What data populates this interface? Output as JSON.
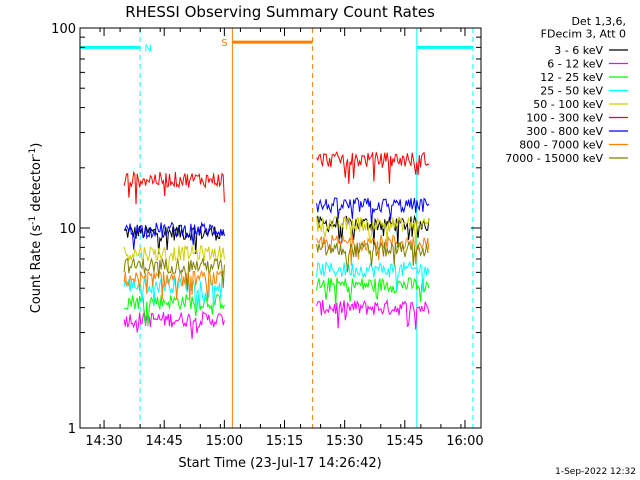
{
  "chart_data": {
    "type": "line",
    "title": "RHESSI Observing Summary Count Rates",
    "xlabel": "Start Time (23-Jul-17 14:26:42)",
    "ylabel_main": "Count Rate (s",
    "ylabel_sup1": "-1",
    "ylabel_mid": " detector",
    "ylabel_sup2": "-1",
    "ylabel_end": ")",
    "yscale": "log",
    "ylim": [
      1,
      100
    ],
    "xlim_minutes": [
      "14:24",
      "16:04"
    ],
    "x_ticks": [
      "14:30",
      "14:45",
      "15:00",
      "15:15",
      "15:30",
      "15:45",
      "16:00"
    ],
    "y_ticks": [
      "1",
      "10",
      "100"
    ],
    "info_lines": [
      "Det 1,3,6,",
      "FDecim 3, Att 0"
    ],
    "timestamp": "1-Sep-2022 12:32",
    "flags": [
      {
        "label": "N",
        "color": "#00ffff",
        "start": "14:24",
        "end": "14:39",
        "level": 80
      },
      {
        "label": "S",
        "color": "#ff8000",
        "start": "15:02",
        "end": "15:22",
        "level": 85
      },
      {
        "label": "",
        "color": "#00ffff",
        "start": "15:48",
        "end": "16:02",
        "level": 80
      }
    ],
    "night_boundaries": [
      {
        "time": "14:24",
        "color": "#00ffff",
        "style": "solid"
      },
      {
        "time": "14:39",
        "color": "#00ffff",
        "style": "dashed"
      },
      {
        "time": "15:02",
        "color": "#ff8000",
        "style": "solid"
      },
      {
        "time": "15:22",
        "color": "#ff8000",
        "style": "dashed"
      },
      {
        "time": "15:48",
        "color": "#00ffff",
        "style": "solid"
      },
      {
        "time": "16:02",
        "color": "#00ffff",
        "style": "dashed"
      }
    ],
    "segments": [
      [
        "14:35",
        "15:00"
      ],
      [
        "15:23",
        "15:51"
      ]
    ],
    "series": [
      {
        "name": "3 - 6 keV",
        "color": "#000000",
        "values": [
          9.5,
          10.5
        ]
      },
      {
        "name": "6 - 12 keV",
        "color": "#ff00ff",
        "values": [
          3.5,
          4.0
        ]
      },
      {
        "name": "12 - 25 keV",
        "color": "#00ff00",
        "values": [
          4.3,
          5.2
        ]
      },
      {
        "name": "25 - 50 keV",
        "color": "#00ffff",
        "values": [
          5.2,
          6.2
        ]
      },
      {
        "name": "50 - 100 keV",
        "color": "#d0d000",
        "values": [
          7.5,
          10.5
        ]
      },
      {
        "name": "100 - 300 keV",
        "color": "#ff0000",
        "values": [
          17.5,
          22.0
        ]
      },
      {
        "name": "300 - 800 keV",
        "color": "#0000ff",
        "values": [
          9.8,
          13.0
        ]
      },
      {
        "name": "800 - 7000 keV",
        "color": "#ff8000",
        "values": [
          5.6,
          8.5
        ]
      },
      {
        "name": "7000 - 15000 keV",
        "color": "#808000",
        "values": [
          6.5,
          7.8
        ]
      }
    ]
  }
}
